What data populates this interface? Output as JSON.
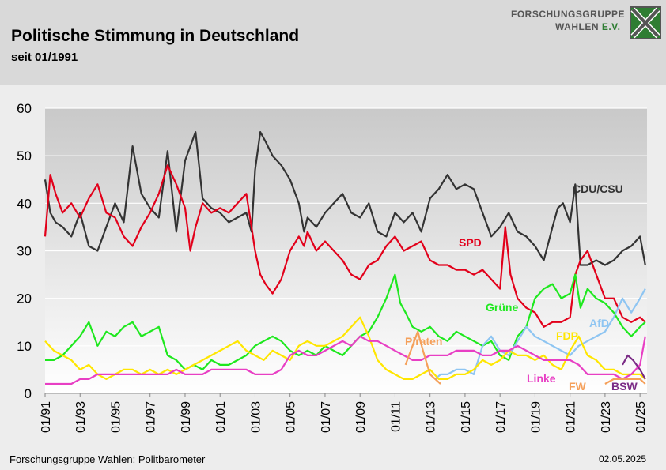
{
  "header": {
    "title": "Politische Stimmung in Deutschland",
    "subtitle": "seit 01/1991",
    "logo_line1": "FORSCHUNGSGRUPPE",
    "logo_line2_a": "WAHLEN ",
    "logo_line2_b": "E.V."
  },
  "footer": {
    "source": "Forschungsgruppe Wahlen: Politbarometer",
    "date": "02.05.2025"
  },
  "chart_data": {
    "type": "line",
    "xlabel": "",
    "ylabel": "",
    "xlim": [
      1991.0,
      2025.4
    ],
    "ylim": [
      0,
      60
    ],
    "yticks": [
      0,
      10,
      20,
      30,
      40,
      50,
      60
    ],
    "xticks": [
      "01/91",
      "01/93",
      "01/95",
      "01/97",
      "01/99",
      "01/01",
      "01/03",
      "01/05",
      "01/07",
      "01/09",
      "01/11",
      "01/13",
      "01/15",
      "01/17",
      "01/19",
      "01/21",
      "01/23",
      "01/25"
    ],
    "grid": "horizontal",
    "legend": "inline labels",
    "series": [
      {
        "name": "CDU/CSU",
        "color": "#333333",
        "x": [
          1991.0,
          1991.3,
          1991.6,
          1992.0,
          1992.5,
          1993.0,
          1993.5,
          1994.0,
          1994.5,
          1995.0,
          1995.5,
          1996.0,
          1996.5,
          1997.0,
          1997.5,
          1998.0,
          1998.5,
          1999.0,
          1999.3,
          1999.6,
          2000.0,
          2000.5,
          2001.0,
          2001.5,
          2002.0,
          2002.5,
          2002.8,
          2003.0,
          2003.3,
          2003.6,
          2004.0,
          2004.5,
          2005.0,
          2005.5,
          2005.8,
          2006.0,
          2006.5,
          2007.0,
          2007.5,
          2008.0,
          2008.5,
          2009.0,
          2009.5,
          2010.0,
          2010.5,
          2011.0,
          2011.5,
          2012.0,
          2012.5,
          2013.0,
          2013.5,
          2014.0,
          2014.5,
          2015.0,
          2015.5,
          2016.0,
          2016.5,
          2017.0,
          2017.5,
          2018.0,
          2018.5,
          2019.0,
          2019.5,
          2020.0,
          2020.3,
          2020.6,
          2021.0,
          2021.3,
          2021.6,
          2022.0,
          2022.5,
          2023.0,
          2023.5,
          2024.0,
          2024.5,
          2025.0,
          2025.3
        ],
        "values": [
          45,
          38,
          36,
          35,
          33,
          38,
          31,
          30,
          35,
          40,
          36,
          52,
          42,
          39,
          37,
          51,
          34,
          49,
          52,
          55,
          41,
          39,
          38,
          36,
          37,
          38,
          34,
          47,
          55,
          53,
          50,
          48,
          45,
          40,
          34,
          37,
          35,
          38,
          40,
          42,
          38,
          37,
          40,
          34,
          33,
          38,
          36,
          38,
          34,
          41,
          43,
          46,
          43,
          44,
          43,
          38,
          33,
          35,
          38,
          34,
          33,
          31,
          28,
          35,
          39,
          40,
          36,
          44,
          27,
          27,
          28,
          27,
          28,
          30,
          31,
          33,
          27
        ]
      },
      {
        "name": "SPD",
        "color": "#e2001a",
        "x": [
          1991.0,
          1991.3,
          1991.6,
          1992.0,
          1992.5,
          1993.0,
          1993.5,
          1994.0,
          1994.5,
          1995.0,
          1995.5,
          1996.0,
          1996.5,
          1997.0,
          1997.5,
          1998.0,
          1998.5,
          1999.0,
          1999.3,
          1999.6,
          2000.0,
          2000.5,
          2001.0,
          2001.5,
          2002.0,
          2002.5,
          2002.8,
          2003.0,
          2003.3,
          2003.6,
          2004.0,
          2004.5,
          2005.0,
          2005.5,
          2005.8,
          2006.0,
          2006.5,
          2007.0,
          2007.5,
          2008.0,
          2008.5,
          2009.0,
          2009.5,
          2010.0,
          2010.5,
          2011.0,
          2011.5,
          2012.0,
          2012.5,
          2013.0,
          2013.5,
          2014.0,
          2014.5,
          2015.0,
          2015.5,
          2016.0,
          2016.5,
          2017.0,
          2017.3,
          2017.6,
          2018.0,
          2018.5,
          2019.0,
          2019.5,
          2020.0,
          2020.5,
          2021.0,
          2021.3,
          2021.6,
          2022.0,
          2022.5,
          2023.0,
          2023.5,
          2024.0,
          2024.5,
          2025.0,
          2025.3
        ],
        "values": [
          33,
          46,
          42,
          38,
          40,
          37,
          41,
          44,
          38,
          37,
          33,
          31,
          35,
          38,
          42,
          48,
          44,
          39,
          30,
          35,
          40,
          38,
          39,
          38,
          40,
          42,
          35,
          30,
          25,
          23,
          21,
          24,
          30,
          33,
          31,
          34,
          30,
          32,
          30,
          28,
          25,
          24,
          27,
          28,
          31,
          33,
          30,
          31,
          32,
          28,
          27,
          27,
          26,
          26,
          25,
          26,
          24,
          22,
          35,
          25,
          20,
          18,
          17,
          14,
          15,
          15,
          16,
          25,
          28,
          30,
          25,
          20,
          20,
          16,
          15,
          16,
          15
        ]
      },
      {
        "name": "Grüne",
        "color": "#1ee81e",
        "x": [
          1991.0,
          1991.5,
          1992.0,
          1992.5,
          1993.0,
          1993.5,
          1994.0,
          1994.5,
          1995.0,
          1995.5,
          1996.0,
          1996.5,
          1997.0,
          1997.5,
          1998.0,
          1998.5,
          1999.0,
          1999.5,
          2000.0,
          2000.5,
          2001.0,
          2001.5,
          2002.0,
          2002.5,
          2003.0,
          2003.5,
          2004.0,
          2004.5,
          2005.0,
          2005.5,
          2006.0,
          2006.5,
          2007.0,
          2007.5,
          2008.0,
          2008.5,
          2009.0,
          2009.5,
          2010.0,
          2010.5,
          2011.0,
          2011.3,
          2011.6,
          2012.0,
          2012.5,
          2013.0,
          2013.5,
          2014.0,
          2014.5,
          2015.0,
          2015.5,
          2016.0,
          2016.5,
          2017.0,
          2017.5,
          2018.0,
          2018.5,
          2019.0,
          2019.5,
          2020.0,
          2020.5,
          2021.0,
          2021.3,
          2021.6,
          2022.0,
          2022.5,
          2023.0,
          2023.5,
          2024.0,
          2024.5,
          2025.0,
          2025.3
        ],
        "values": [
          7,
          7,
          8,
          10,
          12,
          15,
          10,
          13,
          12,
          14,
          15,
          12,
          13,
          14,
          8,
          7,
          5,
          6,
          5,
          7,
          6,
          6,
          7,
          8,
          10,
          11,
          12,
          11,
          9,
          8,
          9,
          8,
          10,
          9,
          8,
          10,
          12,
          13,
          16,
          20,
          25,
          19,
          17,
          14,
          13,
          14,
          12,
          11,
          13,
          12,
          11,
          10,
          11,
          8,
          7,
          12,
          14,
          20,
          22,
          23,
          20,
          21,
          25,
          18,
          22,
          20,
          19,
          17,
          14,
          12,
          14,
          15
        ]
      },
      {
        "name": "AfD",
        "color": "#8ec5f2",
        "x": [
          2013.3,
          2013.6,
          2014.0,
          2014.5,
          2015.0,
          2015.5,
          2016.0,
          2016.5,
          2017.0,
          2017.5,
          2018.0,
          2018.5,
          2019.0,
          2019.5,
          2020.0,
          2020.5,
          2021.0,
          2021.5,
          2022.0,
          2022.5,
          2023.0,
          2023.5,
          2024.0,
          2024.5,
          2025.0,
          2025.3
        ],
        "values": [
          3,
          4,
          4,
          5,
          5,
          4,
          10,
          12,
          9,
          8,
          11,
          14,
          12,
          11,
          10,
          9,
          8,
          10,
          11,
          12,
          13,
          16,
          20,
          17,
          20,
          22
        ]
      },
      {
        "name": "FDP",
        "color": "#ffe600",
        "x": [
          1991.0,
          1991.5,
          1992.0,
          1992.5,
          1993.0,
          1993.5,
          1994.0,
          1994.5,
          1995.0,
          1995.5,
          1996.0,
          1996.5,
          1997.0,
          1997.5,
          1998.0,
          1998.5,
          1999.0,
          1999.5,
          2000.0,
          2000.5,
          2001.0,
          2001.5,
          2002.0,
          2002.5,
          2003.0,
          2003.5,
          2004.0,
          2004.5,
          2005.0,
          2005.5,
          2006.0,
          2006.5,
          2007.0,
          2007.5,
          2008.0,
          2008.5,
          2009.0,
          2009.5,
          2010.0,
          2010.5,
          2011.0,
          2011.5,
          2012.0,
          2012.5,
          2013.0,
          2013.5,
          2014.0,
          2014.5,
          2015.0,
          2015.5,
          2016.0,
          2016.5,
          2017.0,
          2017.5,
          2018.0,
          2018.5,
          2019.0,
          2019.5,
          2020.0,
          2020.5,
          2021.0,
          2021.5,
          2022.0,
          2022.5,
          2023.0,
          2023.5,
          2024.0,
          2024.5,
          2025.0,
          2025.3
        ],
        "values": [
          11,
          9,
          8,
          7,
          5,
          6,
          4,
          3,
          4,
          5,
          5,
          4,
          5,
          4,
          5,
          4,
          5,
          6,
          7,
          8,
          9,
          10,
          11,
          9,
          8,
          7,
          9,
          8,
          7,
          10,
          11,
          10,
          10,
          11,
          12,
          14,
          16,
          12,
          7,
          5,
          4,
          3,
          3,
          4,
          5,
          3,
          3,
          4,
          4,
          5,
          7,
          6,
          7,
          9,
          8,
          8,
          7,
          8,
          6,
          5,
          9,
          12,
          8,
          7,
          5,
          5,
          4,
          4,
          4,
          3
        ]
      },
      {
        "name": "Linke",
        "color": "#e83fc4",
        "x": [
          1991.0,
          1991.5,
          1992.0,
          1992.5,
          1993.0,
          1993.5,
          1994.0,
          1994.5,
          1995.0,
          1995.5,
          1996.0,
          1996.5,
          1997.0,
          1997.5,
          1998.0,
          1998.5,
          1999.0,
          1999.5,
          2000.0,
          2000.5,
          2001.0,
          2001.5,
          2002.0,
          2002.5,
          2003.0,
          2003.5,
          2004.0,
          2004.5,
          2005.0,
          2005.5,
          2006.0,
          2006.5,
          2007.0,
          2007.5,
          2008.0,
          2008.5,
          2009.0,
          2009.5,
          2010.0,
          2010.5,
          2011.0,
          2011.5,
          2012.0,
          2012.5,
          2013.0,
          2013.5,
          2014.0,
          2014.5,
          2015.0,
          2015.5,
          2016.0,
          2016.5,
          2017.0,
          2017.5,
          2018.0,
          2018.5,
          2019.0,
          2019.5,
          2020.0,
          2020.5,
          2021.0,
          2021.5,
          2022.0,
          2022.5,
          2023.0,
          2023.5,
          2024.0,
          2024.5,
          2025.0,
          2025.3
        ],
        "values": [
          2,
          2,
          2,
          2,
          3,
          3,
          4,
          4,
          4,
          4,
          4,
          4,
          4,
          4,
          4,
          5,
          4,
          4,
          4,
          5,
          5,
          5,
          5,
          5,
          4,
          4,
          4,
          5,
          8,
          9,
          8,
          8,
          9,
          10,
          11,
          10,
          12,
          11,
          11,
          10,
          9,
          8,
          7,
          7,
          8,
          8,
          8,
          9,
          9,
          9,
          8,
          8,
          9,
          9,
          10,
          9,
          8,
          7,
          7,
          7,
          7,
          6,
          4,
          4,
          4,
          4,
          3,
          4,
          6,
          12
        ]
      },
      {
        "name": "Piraten",
        "color": "#f5a05a",
        "x": [
          2011.6,
          2012.0,
          2012.3,
          2012.6,
          2013.0,
          2013.3,
          2013.6
        ],
        "values": [
          6,
          10,
          13,
          9,
          4,
          3,
          2
        ]
      },
      {
        "name": "FW",
        "color": "#f5a05a",
        "x": [
          2023.0,
          2023.5,
          2024.0,
          2024.5,
          2025.0,
          2025.3
        ],
        "values": [
          2,
          3,
          3,
          3,
          3,
          2
        ]
      },
      {
        "name": "BSW",
        "color": "#7b2c86",
        "x": [
          2024.0,
          2024.3,
          2024.6,
          2025.0,
          2025.3
        ],
        "values": [
          6,
          8,
          7,
          5,
          3
        ]
      }
    ],
    "labels": [
      {
        "name": "CDU/CSU",
        "color": "#333333"
      },
      {
        "name": "SPD",
        "color": "#e2001a"
      },
      {
        "name": "Grüne",
        "color": "#1ee81e"
      },
      {
        "name": "Piraten",
        "color": "#f5a05a"
      },
      {
        "name": "AfD",
        "color": "#8ec5f2"
      },
      {
        "name": "FDP",
        "color": "#ffe600"
      },
      {
        "name": "Linke",
        "color": "#e83fc4"
      },
      {
        "name": "FW",
        "color": "#f5a05a"
      },
      {
        "name": "BSW",
        "color": "#7b2c86"
      }
    ]
  }
}
